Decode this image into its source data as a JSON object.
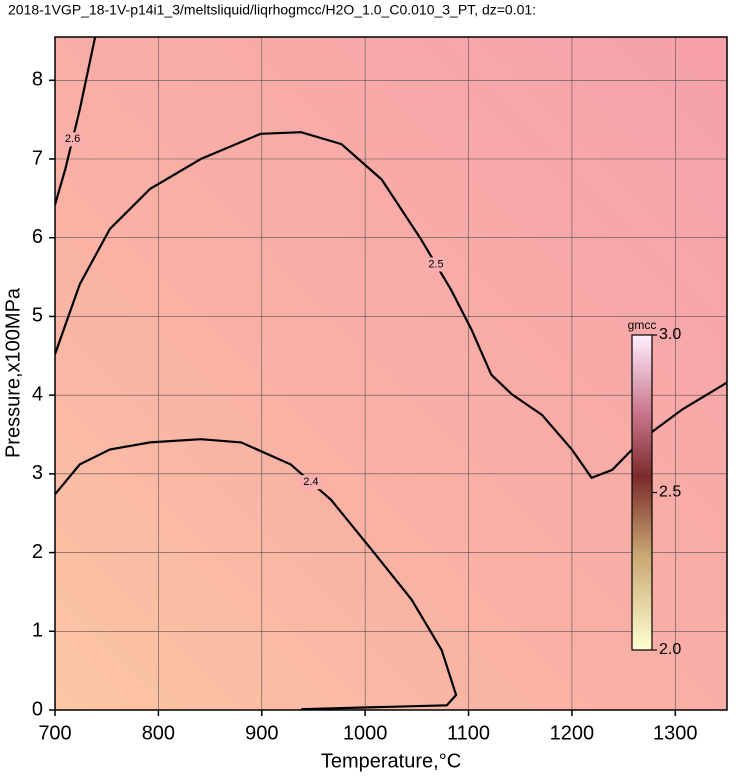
{
  "chart_data": {
    "type": "contour",
    "title": "2018-1VGP_18-1V-p14i1_3/meltsliquid/liqrhogmcc/H2O_1.0_C0.010_3_PT, dz=0.01:",
    "x_label": "Temperature,°C",
    "y_label": "Pressure,x100MPa",
    "xlim": [
      700,
      1350
    ],
    "ylim": [
      0,
      8.55
    ],
    "xticks": [
      700,
      800,
      900,
      1000,
      1100,
      1200,
      1300
    ],
    "yticks": [
      0,
      1,
      2,
      3,
      4,
      5,
      6,
      7,
      8
    ],
    "grid": true,
    "contours": [
      {
        "level": 2.5,
        "x": [
          700,
          724,
          753,
          792,
          841,
          899,
          938,
          977,
          1016,
          1054,
          1083,
          1103,
          1122,
          1142,
          1171,
          1200,
          1219,
          1239,
          1268,
          1307,
          1350
        ],
        "y": [
          4.52,
          5.41,
          6.11,
          6.62,
          7.0,
          7.32,
          7.34,
          7.19,
          6.74,
          5.98,
          5.34,
          4.83,
          4.26,
          4.01,
          3.75,
          3.31,
          2.95,
          3.05,
          3.44,
          3.82,
          4.16
        ]
      },
      {
        "level": 2.4,
        "x": [
          700,
          724,
          753,
          792,
          841,
          880,
          928,
          967,
          1006,
          1045,
          1074,
          1088,
          1079,
          938
        ],
        "y": [
          2.74,
          3.12,
          3.31,
          3.4,
          3.44,
          3.4,
          3.12,
          2.67,
          2.04,
          1.4,
          0.76,
          0.19,
          0.06,
          0.01
        ]
      },
      {
        "level": 2.6,
        "x": [
          739,
          724,
          710,
          700
        ],
        "y": [
          8.56,
          7.63,
          6.87,
          6.42
        ]
      }
    ],
    "colorbar": {
      "label": "gmcc",
      "range": [
        2.0,
        3.0
      ],
      "ticks": [
        {
          "value": 2.0,
          "label": "2.0"
        },
        2.5,
        {
          "value": 3.0,
          "label": "3.0"
        }
      ]
    }
  }
}
